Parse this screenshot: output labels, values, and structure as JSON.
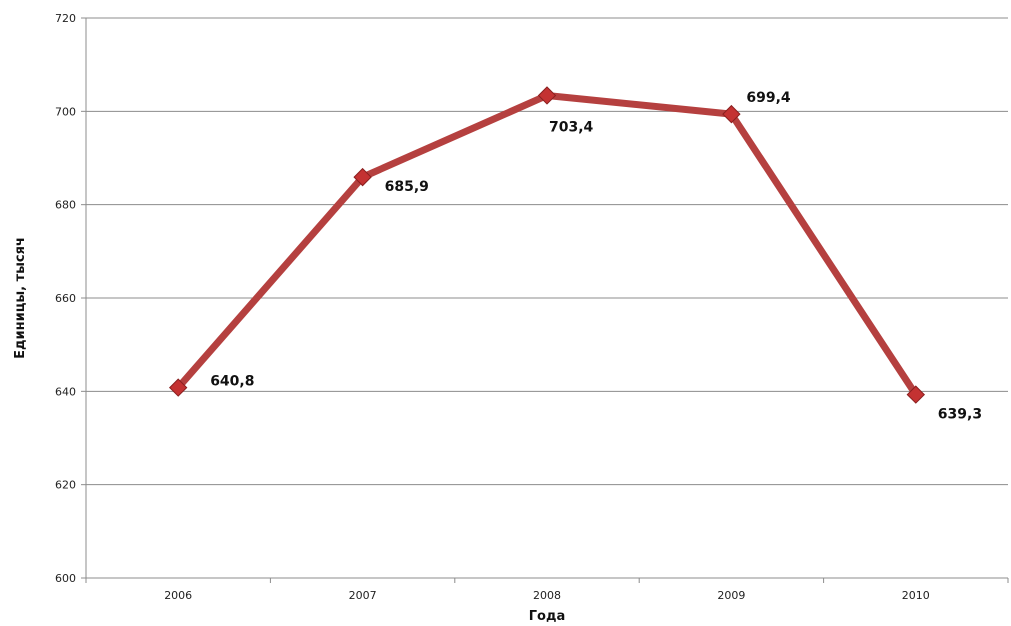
{
  "chart_data": {
    "type": "line",
    "title": "",
    "xlabel": "Года",
    "ylabel": "Единицы, тысяч",
    "categories": [
      "2006",
      "2007",
      "2008",
      "2009",
      "2010"
    ],
    "series": [
      {
        "values": [
          640.8,
          685.9,
          703.4,
          699.4,
          639.3
        ]
      }
    ],
    "data_labels": [
      "640,8",
      "685,9",
      "703,4",
      "699,4",
      "639,3"
    ],
    "ylim": [
      600,
      720
    ],
    "yticks": [
      "600",
      "620",
      "640",
      "660",
      "680",
      "700",
      "720"
    ],
    "grid": true,
    "legend": "none",
    "colors": {
      "line": "#b5403f",
      "marker": "#c43232",
      "grid": "#8c8c8c"
    }
  }
}
